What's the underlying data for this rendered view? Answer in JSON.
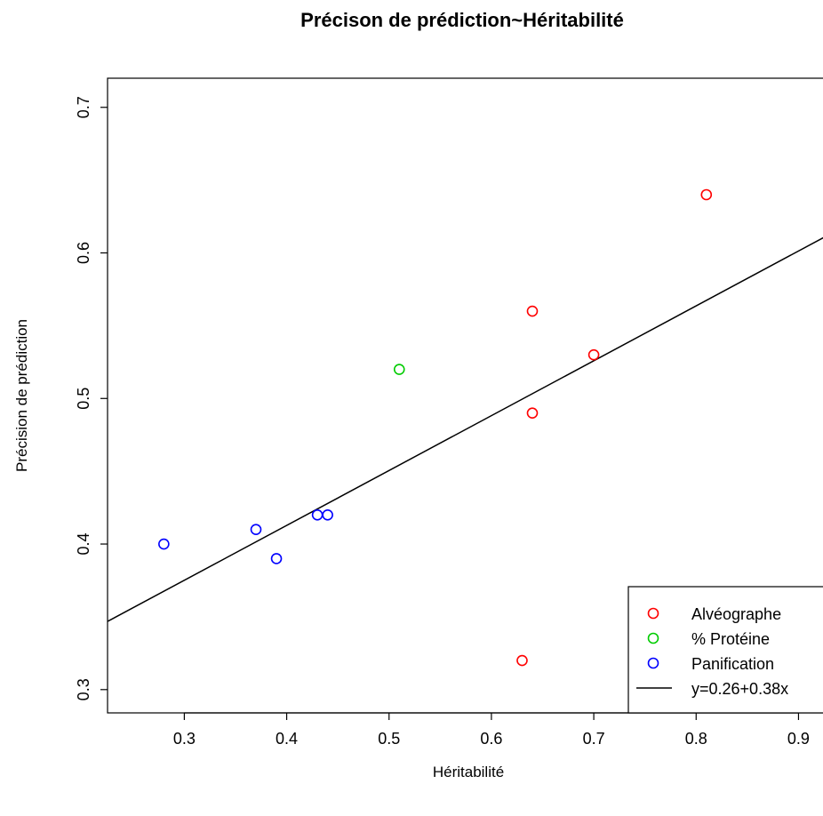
{
  "chart_data": {
    "type": "scatter",
    "title": "Précison de prédiction~Héritabilité",
    "xlabel": "Héritabilité",
    "ylabel": "Précision de prédiction",
    "xlim": [
      0.225,
      0.93
    ],
    "ylim": [
      0.284,
      0.72
    ],
    "x_ticks": [
      0.3,
      0.4,
      0.5,
      0.6,
      0.7,
      0.8,
      0.9
    ],
    "x_tick_labels": [
      "0.3",
      "0.4",
      "0.5",
      "0.6",
      "0.7",
      "0.8",
      "0.9"
    ],
    "y_ticks": [
      0.3,
      0.4,
      0.5,
      0.6,
      0.7
    ],
    "y_tick_labels": [
      "0.3",
      "0.4",
      "0.5",
      "0.6",
      "0.7"
    ],
    "series": [
      {
        "name": "Alvéographe",
        "color": "#ff0000",
        "points": [
          {
            "x": 0.81,
            "y": 0.64
          },
          {
            "x": 0.64,
            "y": 0.56
          },
          {
            "x": 0.7,
            "y": 0.53
          },
          {
            "x": 0.64,
            "y": 0.49
          },
          {
            "x": 0.63,
            "y": 0.32
          }
        ]
      },
      {
        "name": "% Protéine",
        "color": "#00cc00",
        "points": [
          {
            "x": 0.51,
            "y": 0.52
          }
        ]
      },
      {
        "name": "Panification",
        "color": "#0000ff",
        "points": [
          {
            "x": 0.28,
            "y": 0.4
          },
          {
            "x": 0.37,
            "y": 0.41
          },
          {
            "x": 0.39,
            "y": 0.39
          },
          {
            "x": 0.43,
            "y": 0.42
          },
          {
            "x": 0.44,
            "y": 0.42
          }
        ]
      }
    ],
    "regression": {
      "name": "y=0.26+0.38x",
      "intercept": 0.262,
      "slope": 0.377,
      "color": "#000000"
    },
    "legend": {
      "placement": "bottom-right",
      "entries": [
        "Alvéographe",
        "% Protéine",
        "Panification",
        "y=0.26+0.38x"
      ]
    },
    "grid": false
  }
}
